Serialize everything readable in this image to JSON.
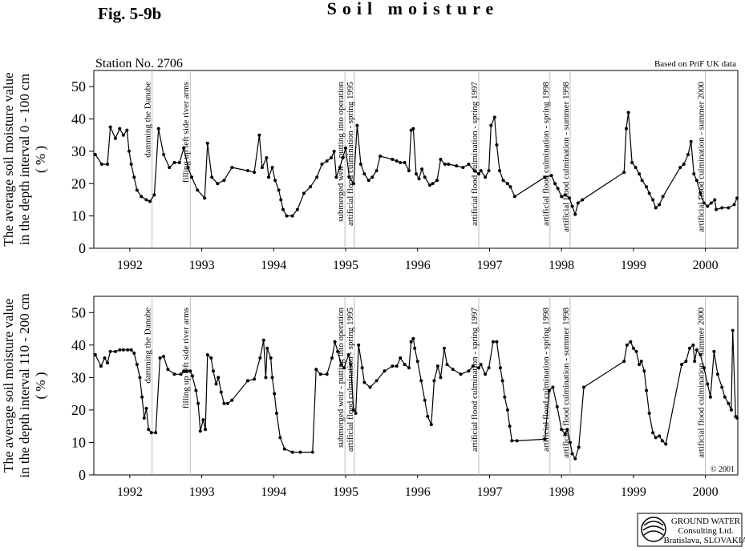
{
  "header": {
    "figure": "Fig. 5-9b",
    "title": "Soil moisture"
  },
  "chart_data": [
    {
      "type": "line",
      "subtitle": "Station No. 2706",
      "note": "Based on PriF UK data",
      "ylabel": [
        "The average soil moisture value",
        "in the depth interval 0 - 100 cm",
        "( % )"
      ],
      "xlim": [
        1992,
        2000.95
      ],
      "ylim": [
        0,
        55
      ],
      "yticks": [
        0,
        10,
        20,
        30,
        40,
        50
      ],
      "xticks": [
        {
          "value": 1992.5,
          "label": "1992"
        },
        {
          "value": 1993.5,
          "label": "1993"
        },
        {
          "value": 1994.5,
          "label": "1994"
        },
        {
          "value": 1995.5,
          "label": "1995"
        },
        {
          "value": 1996.5,
          "label": "1996"
        },
        {
          "value": 1997.5,
          "label": "1997"
        },
        {
          "value": 1998.5,
          "label": "1998"
        },
        {
          "value": 1999.5,
          "label": "1999"
        },
        {
          "value": 2000.5,
          "label": "2000"
        }
      ],
      "events": [
        {
          "x": 1992.81,
          "label": "damming the Danube"
        },
        {
          "x": 1993.34,
          "label": "filling up left side river arms"
        },
        {
          "x": 1995.49,
          "label": "submerged weir - putting into operation"
        },
        {
          "x": 1995.62,
          "label": "artificial flood culmination - spring 1995"
        },
        {
          "x": 1997.35,
          "label": "artificial flood culmination - spring 1997"
        },
        {
          "x": 1998.34,
          "label": "artificial flood culmination - spring 1998"
        },
        {
          "x": 1998.62,
          "label": "artificial flood culmination - summer 1998"
        },
        {
          "x": 2000.5,
          "label": "artificial flood culmination - summer 2000"
        }
      ],
      "x": [
        1992.02,
        1992.11,
        1992.19,
        1992.23,
        1992.3,
        1992.36,
        1992.41,
        1992.46,
        1992.49,
        1992.52,
        1992.56,
        1992.6,
        1992.66,
        1992.73,
        1992.78,
        1992.84,
        1992.9,
        1992.97,
        1993.05,
        1993.12,
        1993.19,
        1993.25,
        1993.31,
        1993.36,
        1993.44,
        1993.54,
        1993.58,
        1993.64,
        1993.72,
        1993.81,
        1993.92,
        1994.14,
        1994.23,
        1994.3,
        1994.34,
        1994.4,
        1994.43,
        1994.48,
        1994.52,
        1994.57,
        1994.6,
        1994.63,
        1994.68,
        1994.76,
        1994.83,
        1994.92,
        1995.01,
        1995.1,
        1995.17,
        1995.24,
        1995.3,
        1995.34,
        1995.37,
        1995.42,
        1995.46,
        1995.5,
        1995.55,
        1995.61,
        1995.66,
        1995.71,
        1995.76,
        1995.82,
        1995.87,
        1995.93,
        1995.98,
        1996.15,
        1996.21,
        1996.26,
        1996.32,
        1996.38,
        1996.41,
        1996.44,
        1996.48,
        1996.52,
        1996.56,
        1996.6,
        1996.67,
        1996.71,
        1996.77,
        1996.82,
        1996.88,
        1996.93,
        1997.04,
        1997.13,
        1997.21,
        1997.29,
        1997.35,
        1997.38,
        1997.44,
        1997.49,
        1997.52,
        1997.57,
        1997.6,
        1997.64,
        1997.69,
        1997.75,
        1997.79,
        1997.85,
        1998.27,
        1998.36,
        1998.41,
        1998.45,
        1998.5,
        1998.55,
        1998.61,
        1998.65,
        1998.69,
        1998.73,
        1998.79,
        1999.37,
        1999.4,
        1999.43,
        1999.48,
        1999.53,
        1999.58,
        1999.62,
        1999.68,
        1999.72,
        1999.77,
        1999.81,
        1999.86,
        1999.91,
        2000.15,
        2000.2,
        2000.26,
        2000.3,
        2000.34,
        2000.38,
        2000.43,
        2000.48,
        2000.53,
        2000.58,
        2000.63,
        2000.65,
        2000.73,
        2000.82,
        2000.9,
        2000.94
      ],
      "series": [
        {
          "color": "#000000",
          "values": [
            29,
            26,
            26,
            37.5,
            34,
            37,
            35,
            36.5,
            30,
            26,
            22,
            18,
            16,
            15,
            14.5,
            16.5,
            37,
            29,
            25,
            26.5,
            26.5,
            31,
            25,
            22,
            18,
            15.5,
            32.5,
            22,
            20,
            21,
            25,
            24,
            23.5,
            35,
            25,
            28,
            22,
            25,
            21,
            18,
            15,
            12,
            10,
            10,
            12,
            17,
            19,
            22,
            26,
            27,
            28,
            30,
            22,
            25,
            28,
            31,
            22,
            20,
            38,
            26,
            23,
            21,
            22,
            24,
            28.5,
            27.5,
            27,
            26.5,
            26.5,
            24,
            36.5,
            37,
            23,
            21.5,
            24.5,
            22,
            19.5,
            20,
            21,
            27.5,
            26,
            26,
            25.5,
            25,
            26,
            24,
            23,
            24,
            22,
            24,
            38,
            40.5,
            32,
            24,
            21,
            20,
            19,
            16,
            22,
            22.5,
            20,
            18.5,
            16,
            16.5,
            15.5,
            13,
            10.5,
            14,
            15,
            23.5,
            37,
            42,
            26.5,
            25,
            23,
            21,
            19,
            17,
            15,
            12.5,
            13.5,
            16,
            25,
            26,
            29,
            33,
            23,
            21,
            17,
            14,
            13,
            14,
            15,
            12,
            12.5,
            12.5,
            13.5,
            15.5
          ]
        }
      ]
    },
    {
      "type": "line",
      "ylabel": [
        "The average soil moisture value",
        "in the depth interval 110 - 200 cm",
        "( % )"
      ],
      "copyright": "© 2001",
      "xlim": [
        1992,
        2000.95
      ],
      "ylim": [
        0,
        55
      ],
      "yticks": [
        0,
        10,
        20,
        30,
        40,
        50
      ],
      "xticks": [
        {
          "value": 1992.5,
          "label": "1992"
        },
        {
          "value": 1993.5,
          "label": "1993"
        },
        {
          "value": 1994.5,
          "label": "1994"
        },
        {
          "value": 1995.5,
          "label": "1995"
        },
        {
          "value": 1996.5,
          "label": "1996"
        },
        {
          "value": 1997.5,
          "label": "1997"
        },
        {
          "value": 1998.5,
          "label": "1998"
        },
        {
          "value": 1999.5,
          "label": "1999"
        },
        {
          "value": 2000.5,
          "label": "2000"
        }
      ],
      "events": [
        {
          "x": 1992.81,
          "label": "damming the Danube"
        },
        {
          "x": 1993.34,
          "label": "filling up left side river arms"
        },
        {
          "x": 1995.49,
          "label": "submerged weir - putting into operation"
        },
        {
          "x": 1995.62,
          "label": "artificial flood culmination - spring 1995"
        },
        {
          "x": 1997.35,
          "label": "artificial flood culmination - spring 1997"
        },
        {
          "x": 1998.34,
          "label": "artificial flood culmination - spring 1998"
        },
        {
          "x": 1998.62,
          "label": "artificial flood culmination - summer 1998"
        },
        {
          "x": 2000.5,
          "label": "artificial flood culmination - summer 2000"
        }
      ],
      "x": [
        1992.02,
        1992.1,
        1992.15,
        1992.19,
        1992.23,
        1992.3,
        1992.36,
        1992.41,
        1992.47,
        1992.52,
        1992.56,
        1992.6,
        1992.64,
        1992.67,
        1992.7,
        1992.73,
        1992.76,
        1992.8,
        1992.86,
        1992.92,
        1992.97,
        1993.03,
        1993.12,
        1993.21,
        1993.25,
        1993.29,
        1993.34,
        1993.37,
        1993.42,
        1993.45,
        1993.48,
        1993.52,
        1993.55,
        1993.58,
        1993.63,
        1993.66,
        1993.7,
        1993.73,
        1993.77,
        1993.81,
        1993.86,
        1993.92,
        1994.14,
        1994.23,
        1994.31,
        1994.36,
        1994.39,
        1994.41,
        1994.46,
        1994.48,
        1994.51,
        1994.54,
        1994.59,
        1994.65,
        1994.76,
        1994.87,
        1995.04,
        1995.09,
        1995.15,
        1995.24,
        1995.31,
        1995.35,
        1995.39,
        1995.44,
        1995.48,
        1995.54,
        1995.57,
        1995.61,
        1995.64,
        1995.68,
        1995.73,
        1995.76,
        1995.84,
        1995.93,
        1996.04,
        1996.15,
        1996.21,
        1996.26,
        1996.32,
        1996.38,
        1996.41,
        1996.44,
        1996.46,
        1996.5,
        1996.55,
        1996.6,
        1996.64,
        1996.69,
        1996.73,
        1996.78,
        1996.82,
        1996.87,
        1996.91,
        1996.99,
        1997.1,
        1997.21,
        1997.27,
        1997.35,
        1997.38,
        1997.44,
        1997.49,
        1997.55,
        1997.6,
        1997.65,
        1997.68,
        1997.71,
        1997.75,
        1997.78,
        1997.81,
        1997.88,
        1998.27,
        1998.33,
        1998.38,
        1998.44,
        1998.5,
        1998.55,
        1998.58,
        1998.62,
        1998.65,
        1998.69,
        1998.74,
        1998.81,
        1999.37,
        1999.41,
        1999.46,
        1999.5,
        1999.54,
        1999.58,
        1999.61,
        1999.65,
        1999.68,
        1999.72,
        1999.77,
        1999.81,
        1999.86,
        1999.9,
        1999.95,
        2000.17,
        2000.23,
        2000.28,
        2000.33,
        2000.35,
        2000.38,
        2000.43,
        2000.48,
        2000.53,
        2000.57,
        2000.62,
        2000.67,
        2000.73,
        2000.77,
        2000.82,
        2000.86,
        2000.88,
        2000.92,
        2000.94
      ],
      "series": [
        {
          "color": "#000000",
          "values": [
            37,
            33.5,
            36,
            34.5,
            38,
            38,
            38.5,
            38.5,
            38.5,
            38.5,
            37.5,
            34,
            30,
            24,
            17.5,
            20.5,
            14,
            13,
            13,
            36,
            36.5,
            32.5,
            31,
            31,
            32,
            32,
            32,
            30.5,
            26,
            22,
            13.5,
            17,
            14,
            37,
            36,
            32,
            28,
            30,
            25.5,
            22,
            22,
            23,
            29,
            29.5,
            36,
            41.5,
            30,
            39,
            36,
            30,
            25,
            19,
            11.5,
            8,
            7,
            7,
            7,
            32.5,
            31,
            31,
            36,
            41,
            38,
            34,
            33,
            37,
            34,
            20,
            19,
            40,
            33,
            28.5,
            27,
            29,
            32,
            33.5,
            33.5,
            36,
            34,
            33,
            41,
            42,
            39,
            35,
            29,
            23,
            18,
            15.5,
            29,
            33.5,
            30,
            39,
            34,
            32.5,
            31,
            32,
            33.5,
            33,
            34,
            31,
            33,
            41,
            41,
            33,
            29,
            24,
            20,
            15,
            10.5,
            10.5,
            11,
            26,
            27,
            21,
            14,
            12.5,
            14,
            10,
            6.5,
            5,
            8.5,
            27,
            35,
            40,
            41,
            39,
            38,
            34,
            35,
            32,
            26,
            19,
            13,
            11.5,
            12,
            10.5,
            9.5,
            34,
            35,
            39,
            40,
            35,
            38.5,
            37,
            33,
            28,
            24,
            38,
            31,
            27,
            24,
            22,
            20,
            44.5,
            18,
            17.5
          ]
        }
      ]
    }
  ],
  "logo": {
    "lines": [
      "GROUND WATER",
      "Consulting Ltd.",
      "Bratislava, SLOVAKIA"
    ]
  }
}
